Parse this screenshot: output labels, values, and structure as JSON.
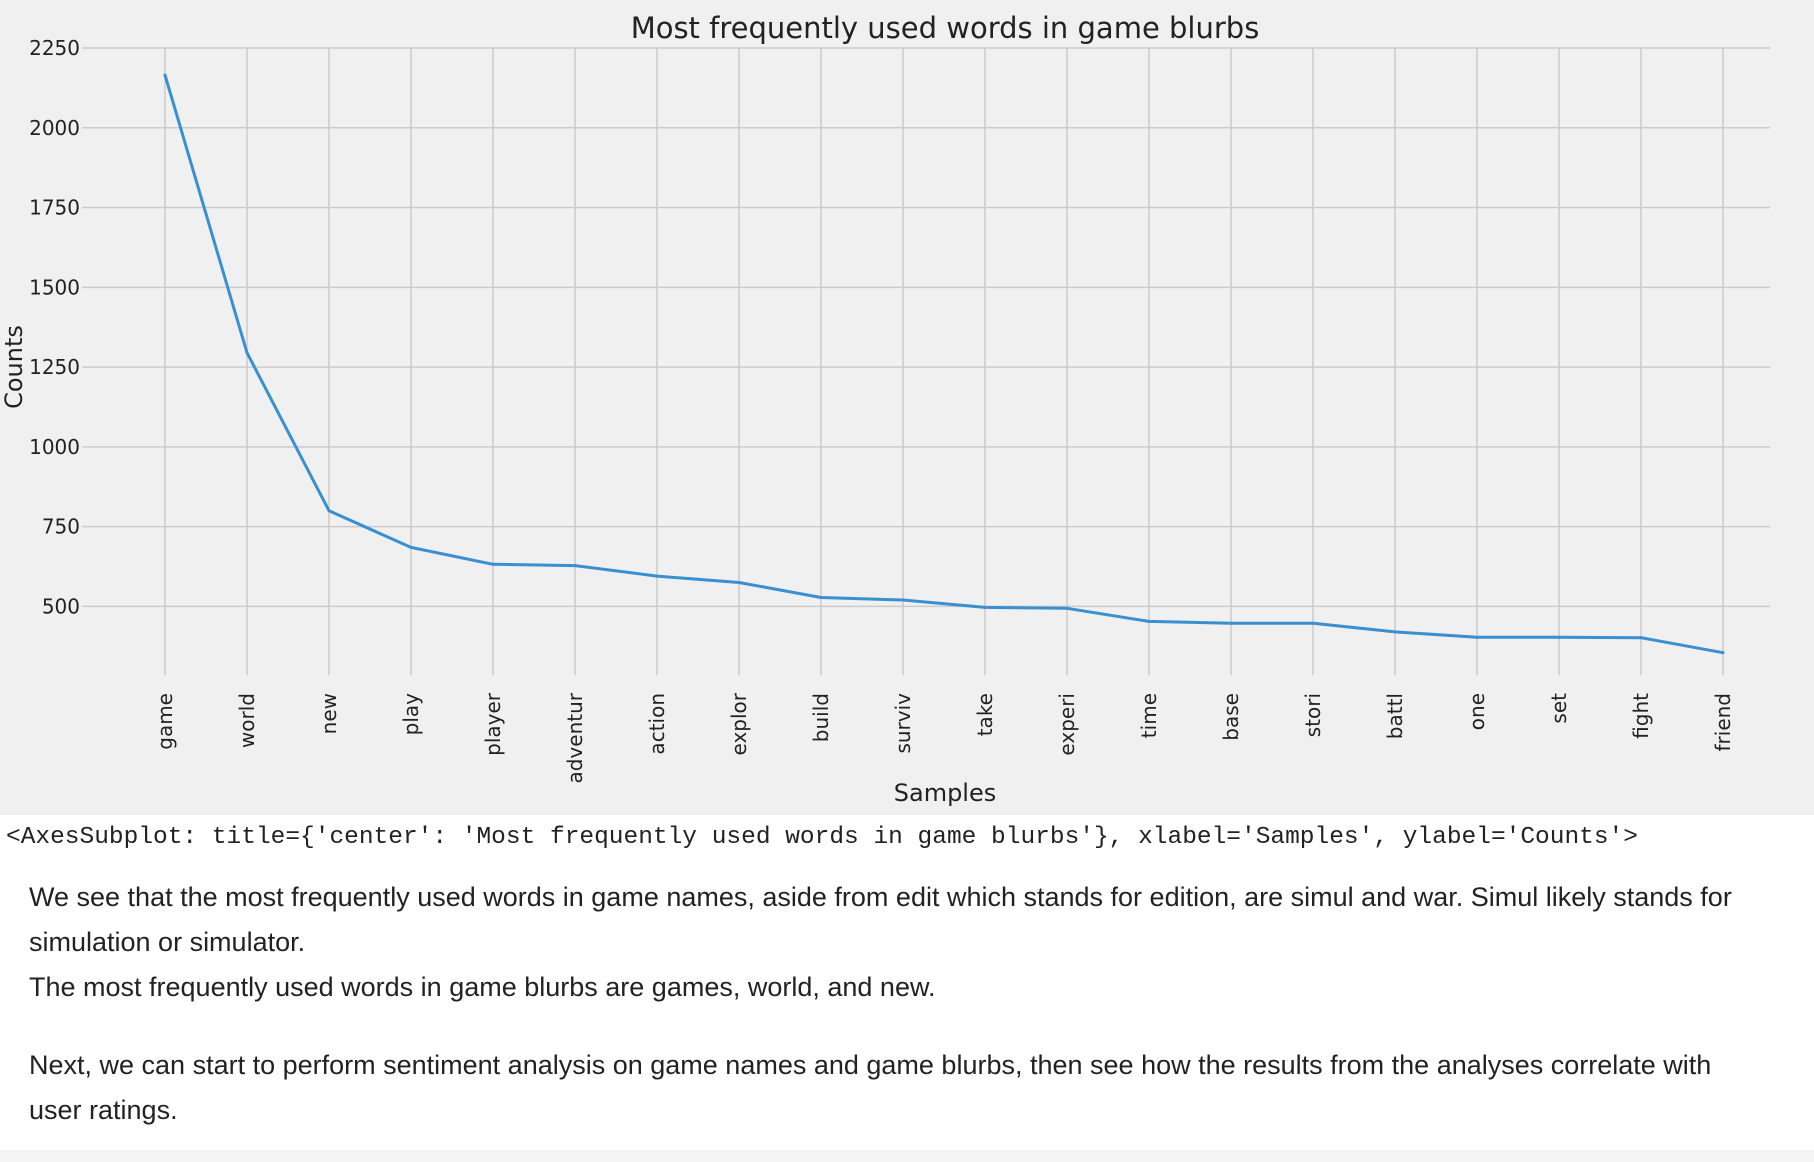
{
  "chart_data": {
    "type": "line",
    "title": "Most frequently used words in game blurbs",
    "xlabel": "Samples",
    "ylabel": "Counts",
    "categories": [
      "game",
      "world",
      "new",
      "play",
      "player",
      "adventur",
      "action",
      "explor",
      "build",
      "surviv",
      "take",
      "experi",
      "time",
      "base",
      "stori",
      "battl",
      "one",
      "set",
      "fight",
      "friend"
    ],
    "values": [
      2165,
      1295,
      800,
      685,
      632,
      628,
      595,
      575,
      528,
      520,
      497,
      494,
      453,
      447,
      447,
      420,
      403,
      403,
      402,
      355
    ],
    "yticks": [
      500,
      750,
      1000,
      1250,
      1500,
      1750,
      2000,
      2250
    ],
    "ylim": [
      285,
      2250
    ],
    "grid": true,
    "line_color": "#3a8fd0"
  },
  "output": {
    "repr": "<AxesSubplot: title={'center': 'Most frequently used words in game blurbs'}, xlabel='Samples', ylabel='Counts'>"
  },
  "markdown": {
    "para1_line1": "We see that the most frequently used words in game names, aside from edit which stands for edition, are simul and war. Simul likely stands for simulation or simulator.",
    "para1_line2": "The most frequently used words in game blurbs are games, world, and new.",
    "para2": "Next, we can start to perform sentiment analysis on game names and game blurbs, then see how the results from the analyses correlate with user ratings."
  }
}
